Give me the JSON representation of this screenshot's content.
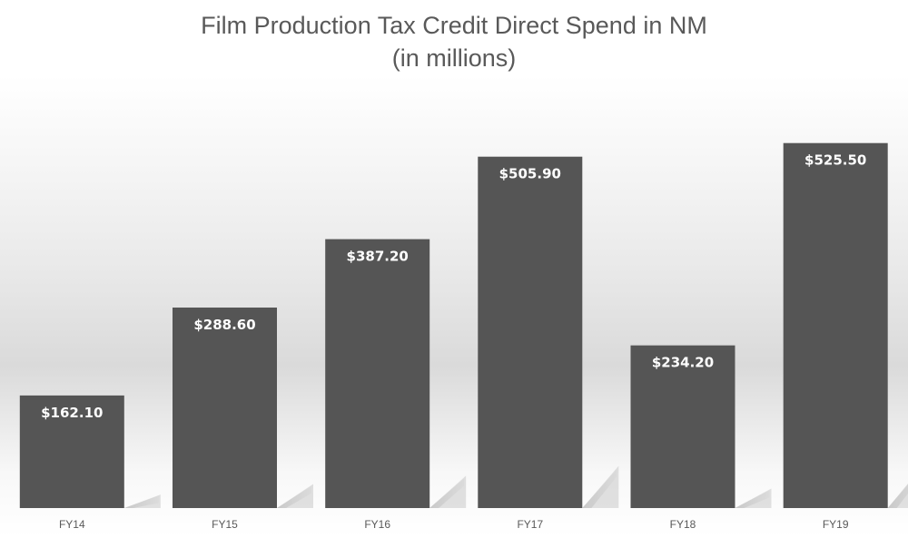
{
  "chart_data": {
    "type": "bar",
    "title": "Film Production Tax Credit Direct Spend in NM",
    "subtitle": "(in millions)",
    "xlabel": "",
    "ylabel": "",
    "categories": [
      "FY14",
      "FY15",
      "FY16",
      "FY17",
      "FY18",
      "FY19"
    ],
    "series": [
      {
        "values": [
          162.1,
          288.6,
          387.2,
          505.9,
          234.2,
          525.5
        ],
        "data_labels": [
          "$162.10",
          "$288.60",
          "$387.20",
          "$505.90",
          "$234.20",
          "$525.50"
        ],
        "color": "#555555"
      }
    ],
    "ylim": [
      0,
      529
    ],
    "grid": false,
    "legend": "none",
    "colors": {
      "bar": "#555555",
      "bar_shadow": "#c8c8c8",
      "title_text": "#595959",
      "data_label_text": "#ffffff",
      "tick_label_text": "#595959"
    }
  }
}
